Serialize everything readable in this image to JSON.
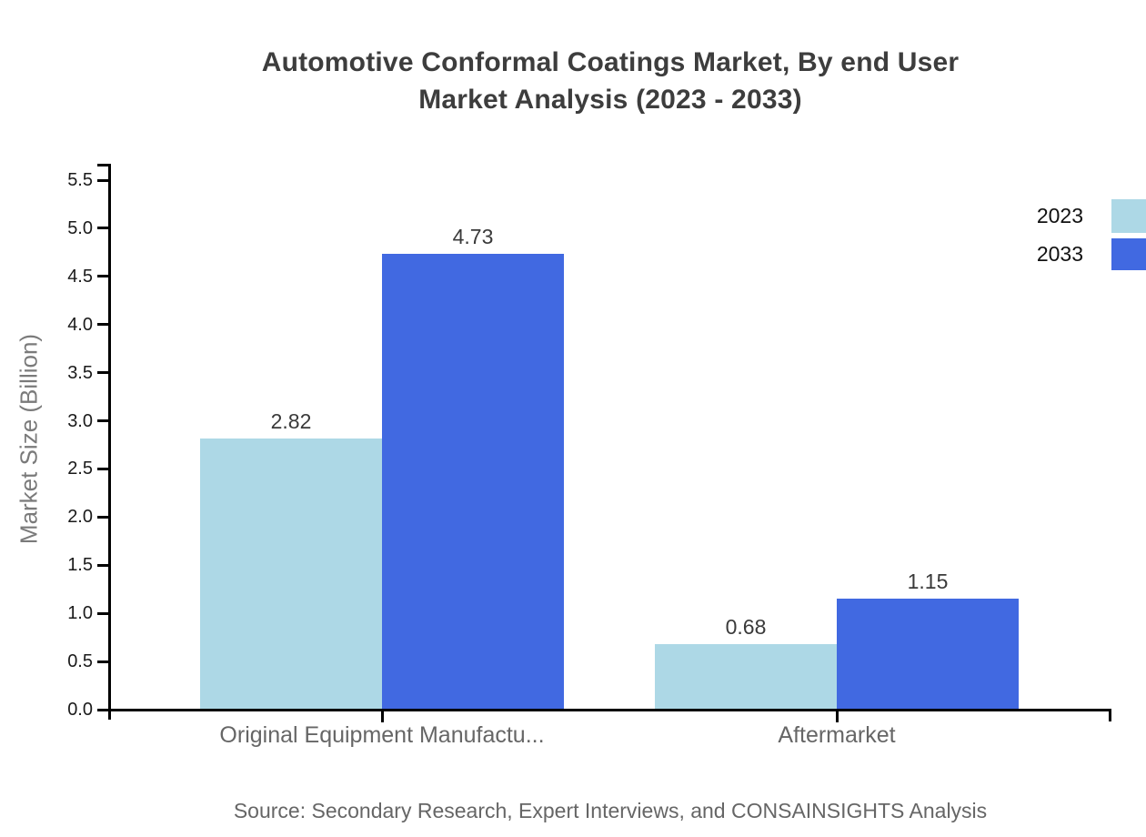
{
  "title": {
    "line1": "Automotive Conformal Coatings Market, By end User",
    "line2": "Market Analysis (2023 - 2033)"
  },
  "legend": {
    "position": "top-right",
    "items": [
      {
        "label": "2023",
        "color": "#ADD8E6"
      },
      {
        "label": "2033",
        "color": "#4169E1"
      }
    ]
  },
  "y_axis": {
    "title": "Market Size (Billion)",
    "tick_labels": [
      "0.0",
      "0.5",
      "1.0",
      "1.5",
      "2.0",
      "2.5",
      "3.0",
      "3.5",
      "4.0",
      "4.5",
      "5.0",
      "5.5"
    ]
  },
  "source_note": "Source: Secondary Research, Expert Interviews, and CONSAINSIGHTS Analysis",
  "chart_data": {
    "type": "bar",
    "title": "Automotive Conformal Coatings Market, By end User Market Analysis (2023 - 2033)",
    "categories": [
      "Original Equipment Manufactu...",
      "Aftermarket"
    ],
    "series": [
      {
        "name": "2023",
        "color": "#ADD8E6",
        "values": [
          2.82,
          0.68
        ],
        "value_labels": [
          "2.82",
          "0.68"
        ]
      },
      {
        "name": "2033",
        "color": "#4169E1",
        "values": [
          4.73,
          1.15
        ],
        "value_labels": [
          "4.73",
          "1.15"
        ]
      }
    ],
    "xlabel": "",
    "ylabel": "Market Size (Billion)",
    "ylim": [
      0,
      5.5
    ],
    "y_ticks": [
      0.0,
      0.5,
      1.0,
      1.5,
      2.0,
      2.5,
      3.0,
      3.5,
      4.0,
      4.5,
      5.0,
      5.5
    ],
    "grid": false,
    "legend_position": "top-right",
    "background": "#ffffff"
  }
}
